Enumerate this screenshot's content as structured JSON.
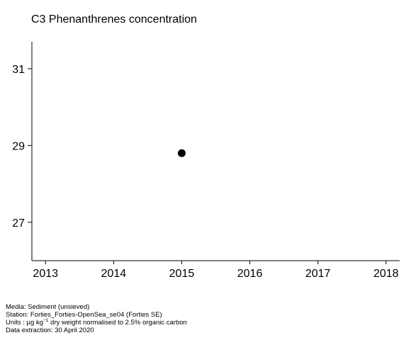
{
  "chart_data": {
    "type": "scatter",
    "title": "C3 Phenanthrenes concentration",
    "xlabel": "",
    "ylabel": "",
    "x_ticks": [
      "2013",
      "2014",
      "2015",
      "2016",
      "2017",
      "2018"
    ],
    "y_ticks": [
      "27",
      "29",
      "31"
    ],
    "xlim": [
      2012.8,
      2018.2
    ],
    "ylim": [
      26.0,
      31.7
    ],
    "grid": false,
    "points": [
      {
        "x": 2015,
        "y": 28.8
      }
    ],
    "marker_color": "#000000"
  },
  "footer": {
    "media": "Media: Sediment (unsieved)",
    "station": "Station: Forties_Forties-OpenSea_se04 (Forties SE)",
    "units_prefix": "Units : µg kg",
    "units_exponent": "−1",
    "units_suffix": " dry weight normalised to 2.5% organic carbon",
    "extraction": "Data extraction: 30 April 2020"
  }
}
